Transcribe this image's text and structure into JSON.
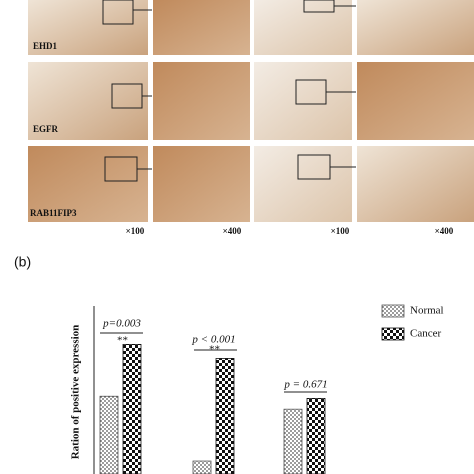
{
  "panel_a": {
    "row_labels": [
      "EHD1",
      "EGFR",
      "RAB11FIP3"
    ],
    "magnifications": [
      "×100",
      "×400",
      "×100",
      "×400"
    ]
  },
  "chart_data": {
    "type": "bar",
    "panel_label": "(b)",
    "y_label": "Ration of positive expression",
    "categories": [
      null,
      null,
      null
    ],
    "series": [
      {
        "name": "Normal",
        "color": "#555555",
        "pattern": "dots",
        "values": [
          36,
          6,
          30
        ]
      },
      {
        "name": "Cancer",
        "color": "#111111",
        "pattern": "checker",
        "values": [
          60,
          53.5,
          35
        ]
      }
    ],
    "ylim": [
      0,
      75
    ],
    "annotations": [
      "p=0.003",
      "**",
      "p < 0.001",
      "**",
      "p = 0.671"
    ],
    "legend": "top-right"
  }
}
